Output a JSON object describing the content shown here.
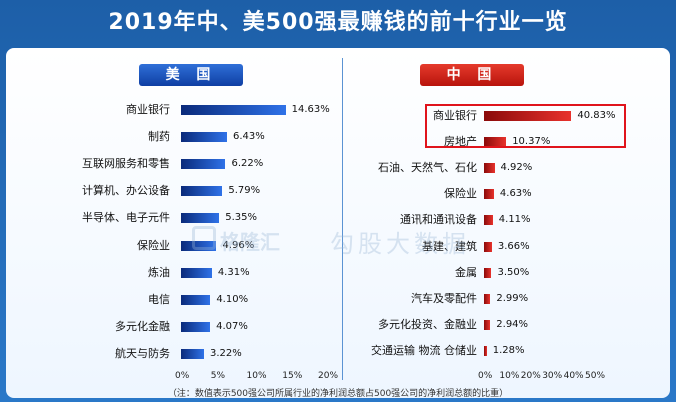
{
  "title": "2019年中、美500强最赚钱的前十行业一览",
  "colors": {
    "us_bar": "#1f5fd0",
    "cn_bar": "#d8221c",
    "highlight": "#e0141c",
    "background": "#2a78c8"
  },
  "watermark": {
    "brand": "格隆汇",
    "sub": "勾股大数据"
  },
  "footnote": "（注：数值表示500强公司所属行业的净利润总额占500强公司的净利润总额的比重）",
  "chart_data": [
    {
      "type": "bar",
      "orientation": "horizontal",
      "title": "美 国",
      "categories": [
        "商业银行",
        "制药",
        "互联网服务和零售",
        "计算机、办公设备",
        "半导体、电子元件",
        "保险业",
        "炼油",
        "电信",
        "多元化金融",
        "航天与防务"
      ],
      "values": [
        14.63,
        6.43,
        6.22,
        5.79,
        5.35,
        4.96,
        4.31,
        4.1,
        4.07,
        3.22
      ],
      "value_labels": [
        "14.63%",
        "6.43%",
        "6.22%",
        "5.79%",
        "5.35%",
        "4.96%",
        "4.31%",
        "4.10%",
        "4.07%",
        "3.22%"
      ],
      "xlim": [
        0,
        20
      ],
      "x_ticks": [
        "0%",
        "5%",
        "10%",
        "15%",
        "20%"
      ],
      "grid": false
    },
    {
      "type": "bar",
      "orientation": "horizontal",
      "title": "中 国",
      "categories": [
        "商业银行",
        "房地产",
        "石油、天然气、石化",
        "保险业",
        "通讯和通讯设备",
        "基建、建筑",
        "金属",
        "汽车及零配件",
        "多元化投资、金融业",
        "交通运输 物流 仓储业"
      ],
      "values": [
        40.83,
        10.37,
        4.92,
        4.63,
        4.11,
        3.66,
        3.5,
        2.99,
        2.94,
        1.28
      ],
      "value_labels": [
        "40.83%",
        "10.37%",
        "4.92%",
        "4.63%",
        "4.11%",
        "3.66%",
        "3.50%",
        "2.99%",
        "2.94%",
        "1.28%"
      ],
      "xlim": [
        0,
        50
      ],
      "x_ticks": [
        "0%",
        "10%",
        "20%",
        "30%",
        "40%",
        "50%"
      ],
      "highlighted_categories": [
        "商业银行",
        "房地产"
      ],
      "grid": false
    }
  ]
}
